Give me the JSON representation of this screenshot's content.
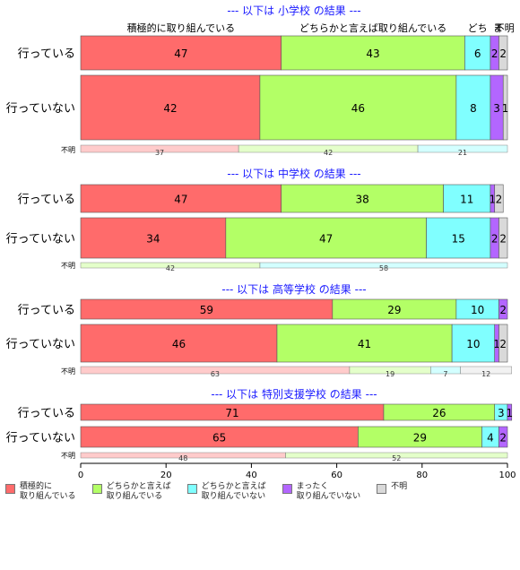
{
  "chart_data": {
    "type": "bar",
    "orientation": "horizontal",
    "stacked": true,
    "xlim": [
      0,
      100
    ],
    "xticks": [
      "0",
      "20",
      "40",
      "60",
      "80",
      "100"
    ],
    "categories_legend": [
      "積極的に\n取り組んでいる",
      "どちらかと言えば\n取り組んでいる",
      "どちらかと言えば\n取り組んでいない",
      "まったく\n取り組んでいない",
      "不明"
    ],
    "colors": [
      "#ff6b6b",
      "#b3ff66",
      "#80ffff",
      "#b366ff",
      "#d9d9d9"
    ],
    "top_labels": [
      {
        "text": "積極的に取り組んでいる",
        "center": 23.5
      },
      {
        "text": "どちらかと言えば取り組んでいる",
        "center": 68.5
      },
      {
        "text": "どち",
        "center": 93
      },
      {
        "text": "ま",
        "center": 97.8
      },
      {
        "text": "不明",
        "center": 99.3
      }
    ],
    "panels": [
      {
        "title": "--- 以下は 小学校 の結果 ---",
        "rows": [
          {
            "label": "行っている",
            "values": [
              47,
              43,
              6,
              2,
              2
            ]
          },
          {
            "label": "行っていない",
            "values": [
              42,
              46,
              8,
              3,
              1
            ]
          }
        ],
        "unknown": {
          "label": "不明",
          "values": [
            37,
            42,
            21,
            0,
            0
          ]
        }
      },
      {
        "title": "--- 以下は 中学校 の結果 ---",
        "rows": [
          {
            "label": "行っている",
            "values": [
              47,
              38,
              11,
              1,
              2
            ]
          },
          {
            "label": "行っていない",
            "values": [
              34,
              47,
              15,
              2,
              2
            ]
          }
        ],
        "unknown": {
          "label": "不明",
          "values": [
            0,
            42,
            58,
            0,
            0
          ]
        }
      },
      {
        "title": "--- 以下は 高等学校 の結果 ---",
        "rows": [
          {
            "label": "行っている",
            "values": [
              59,
              29,
              10,
              2,
              0
            ]
          },
          {
            "label": "行っていない",
            "values": [
              46,
              41,
              10,
              1,
              2
            ]
          }
        ],
        "unknown": {
          "label": "不明",
          "values": [
            63,
            19,
            7,
            0,
            12
          ]
        }
      },
      {
        "title": "--- 以下は 特別支援学校 の結果 ---",
        "rows": [
          {
            "label": "行っている",
            "values": [
              71,
              26,
              3,
              1,
              0
            ]
          },
          {
            "label": "行っていない",
            "values": [
              65,
              29,
              4,
              2,
              0
            ]
          }
        ],
        "unknown": {
          "label": "不明",
          "values": [
            48,
            52,
            0,
            0,
            0
          ]
        }
      }
    ]
  }
}
